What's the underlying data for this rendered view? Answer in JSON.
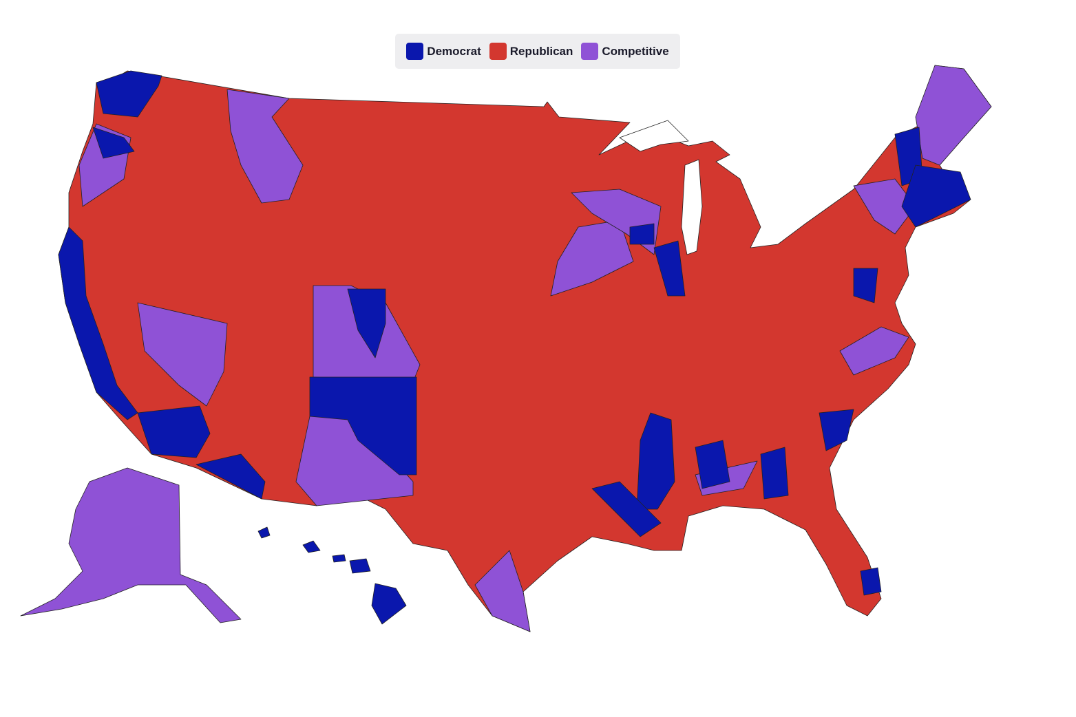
{
  "legend": {
    "items": [
      {
        "label": "Democrat",
        "color": "#0a17ad"
      },
      {
        "label": "Republican",
        "color": "#d3372f"
      },
      {
        "label": "Competitive",
        "color": "#8f52d6"
      }
    ]
  }
}
